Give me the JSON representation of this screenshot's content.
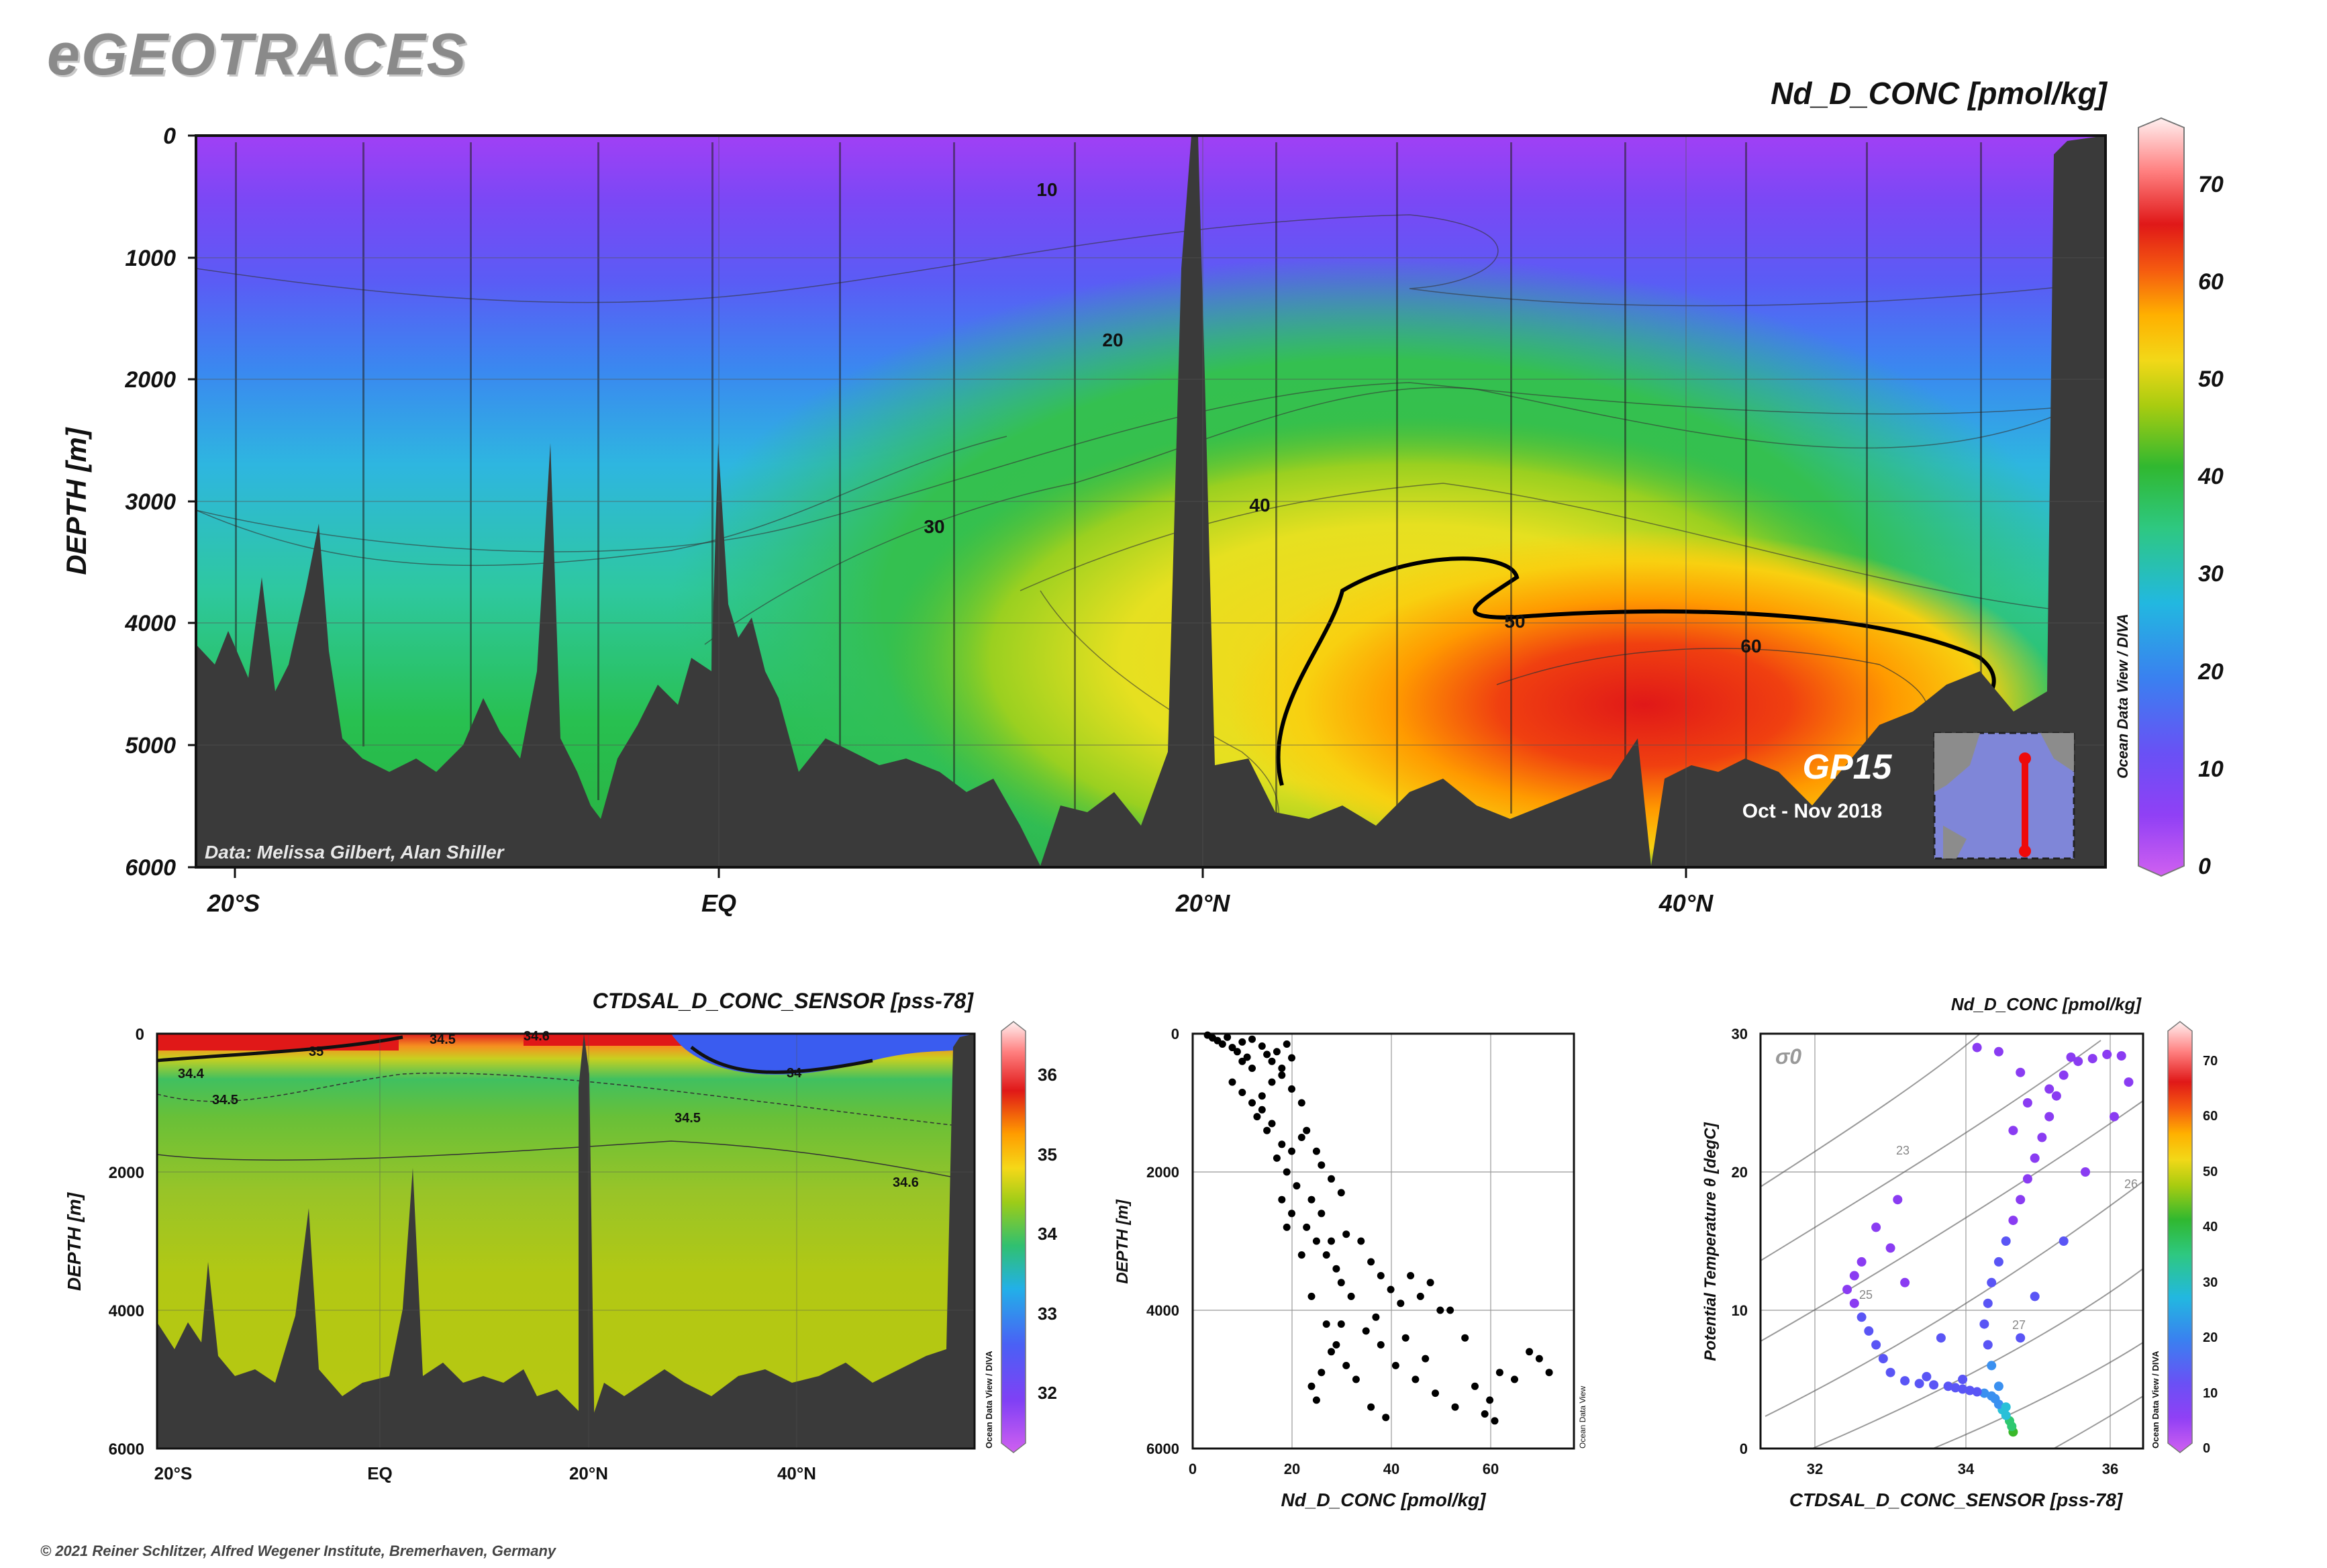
{
  "header": {
    "logo": "eGEOTRACES",
    "copyright": "© 2021 Reiner Schlitzer, Alfred Wegener Institute, Bremerhaven, Germany"
  },
  "colors": {
    "land": "#3a3a3a",
    "scale": [
      "#d060f0",
      "#8a3cf2",
      "#5a55f5",
      "#3a90f0",
      "#28c0d8",
      "#2ec870",
      "#3ab82a",
      "#a8cc10",
      "#f2d818",
      "#ffb000",
      "#f55a10",
      "#e01818",
      "#ff7a7a",
      "#fff0f0"
    ]
  },
  "chart_data": [
    {
      "type": "heatmap",
      "panel": "main-section",
      "title": "Nd_D_CONC [pmol/kg]",
      "ylabel": "DEPTH [m]",
      "yticks": [
        "0",
        "1000",
        "2000",
        "3000",
        "4000",
        "5000",
        "6000"
      ],
      "ylim": [
        0,
        6000
      ],
      "xticks": [
        "20°S",
        "EQ",
        "20°N",
        "40°N"
      ],
      "colorbar": {
        "ticks": [
          "0",
          "10",
          "20",
          "30",
          "40",
          "50",
          "60",
          "70"
        ],
        "range": [
          0,
          75
        ]
      },
      "contour_labels": [
        "10",
        "20",
        "30",
        "40",
        "50",
        "60"
      ],
      "credit": "Data: Melissa Gilbert, Alan Shiller",
      "cruise": "GP15",
      "period": "Oct - Nov 2018",
      "watermark": "Ocean Data View / DIVA"
    },
    {
      "type": "heatmap",
      "panel": "salinity-section",
      "title": "CTDSAL_D_CONC_SENSOR [pss-78]",
      "ylabel": "DEPTH [m]",
      "yticks": [
        "0",
        "2000",
        "4000",
        "6000"
      ],
      "ylim": [
        0,
        6000
      ],
      "xticks": [
        "20°S",
        "EQ",
        "20°N",
        "40°N"
      ],
      "colorbar": {
        "ticks": [
          "32",
          "33",
          "34",
          "35",
          "36"
        ],
        "range": [
          31.3,
          36.5
        ]
      },
      "contour_labels": [
        "35",
        "34.5",
        "34.4",
        "34.5",
        "34.6",
        "34",
        "34.5",
        "34.6"
      ],
      "watermark": "Ocean Data View / DIVA"
    },
    {
      "type": "scatter",
      "panel": "profile",
      "xlabel": "Nd_D_CONC [pmol/kg]",
      "ylabel": "DEPTH [m]",
      "xticks": [
        "0",
        "20",
        "40",
        "60"
      ],
      "yticks": [
        "0",
        "2000",
        "4000",
        "6000"
      ],
      "xlim": [
        0,
        77
      ],
      "ylim": [
        0,
        6000
      ],
      "watermark": "Ocean Data View",
      "points": [
        [
          3,
          20
        ],
        [
          4,
          60
        ],
        [
          5,
          100
        ],
        [
          6,
          150
        ],
        [
          7,
          50
        ],
        [
          8,
          200
        ],
        [
          9,
          260
        ],
        [
          10,
          120
        ],
        [
          11,
          340
        ],
        [
          12,
          80
        ],
        [
          14,
          180
        ],
        [
          15,
          300
        ],
        [
          16,
          400
        ],
        [
          17,
          260
        ],
        [
          18,
          500
        ],
        [
          19,
          150
        ],
        [
          20,
          350
        ],
        [
          8,
          700
        ],
        [
          10,
          850
        ],
        [
          12,
          1000
        ],
        [
          13,
          1200
        ],
        [
          14,
          1100
        ],
        [
          15,
          1400
        ],
        [
          16,
          1300
        ],
        [
          18,
          1600
        ],
        [
          17,
          1800
        ],
        [
          19,
          2000
        ],
        [
          20,
          1700
        ],
        [
          22,
          1500
        ],
        [
          21,
          2200
        ],
        [
          24,
          2400
        ],
        [
          20,
          2600
        ],
        [
          23,
          2800
        ],
        [
          26,
          2600
        ],
        [
          25,
          3000
        ],
        [
          27,
          3200
        ],
        [
          29,
          3400
        ],
        [
          28,
          3000
        ],
        [
          30,
          3600
        ],
        [
          32,
          3800
        ],
        [
          31,
          2900
        ],
        [
          34,
          3000
        ],
        [
          36,
          3300
        ],
        [
          38,
          3500
        ],
        [
          40,
          3700
        ],
        [
          42,
          3900
        ],
        [
          44,
          3500
        ],
        [
          46,
          3800
        ],
        [
          48,
          3600
        ],
        [
          50,
          4000
        ],
        [
          52,
          4000
        ],
        [
          38,
          4500
        ],
        [
          41,
          4800
        ],
        [
          45,
          5000
        ],
        [
          49,
          5200
        ],
        [
          53,
          5400
        ],
        [
          57,
          5100
        ],
        [
          60,
          5300
        ],
        [
          62,
          4900
        ],
        [
          65,
          5000
        ],
        [
          68,
          4600
        ],
        [
          70,
          4700
        ],
        [
          72,
          4900
        ],
        [
          59,
          5500
        ],
        [
          61,
          5600
        ],
        [
          30,
          4200
        ],
        [
          28,
          4600
        ],
        [
          26,
          4900
        ],
        [
          24,
          5100
        ],
        [
          25,
          5300
        ],
        [
          33,
          5000
        ],
        [
          36,
          5400
        ],
        [
          39,
          5550
        ],
        [
          22,
          3200
        ],
        [
          19,
          2800
        ],
        [
          18,
          2400
        ],
        [
          24,
          3800
        ],
        [
          27,
          4200
        ],
        [
          29,
          4500
        ],
        [
          31,
          4800
        ],
        [
          35,
          4300
        ],
        [
          37,
          4100
        ],
        [
          43,
          4400
        ],
        [
          47,
          4700
        ],
        [
          55,
          4400
        ],
        [
          26,
          1900
        ],
        [
          28,
          2100
        ],
        [
          30,
          2300
        ],
        [
          25,
          1700
        ],
        [
          23,
          1400
        ],
        [
          22,
          1000
        ],
        [
          20,
          800
        ],
        [
          18,
          600
        ],
        [
          16,
          700
        ],
        [
          14,
          900
        ],
        [
          12,
          500
        ],
        [
          10,
          400
        ]
      ]
    },
    {
      "type": "scatter",
      "panel": "ts-diagram",
      "title": "Nd_D_CONC [pmol/kg]",
      "xlabel": "CTDSAL_D_CONC_SENSOR [pss-78]",
      "ylabel": "Potential Temperature θ [degC]",
      "xticks": [
        "32",
        "34",
        "36"
      ],
      "yticks": [
        "0",
        "10",
        "20",
        "30"
      ],
      "xlim": [
        31.2,
        36.5
      ],
      "ylim": [
        0,
        30
      ],
      "isopycnal_labels": [
        "23",
        "25",
        "26",
        "27"
      ],
      "sigma_label": "σ0",
      "colorbar": {
        "ticks": [
          "0",
          "10",
          "20",
          "30",
          "40",
          "50",
          "60",
          "70"
        ],
        "range": [
          0,
          75
        ]
      },
      "watermark": "Ocean Data View / DIVA",
      "points": [
        [
          34.7,
          1.2,
          32
        ],
        [
          34.68,
          1.6,
          30
        ],
        [
          34.65,
          2.0,
          27
        ],
        [
          34.6,
          2.4,
          24
        ],
        [
          34.55,
          2.8,
          22
        ],
        [
          34.5,
          3.2,
          20
        ],
        [
          34.45,
          3.6,
          18
        ],
        [
          34.4,
          3.8,
          17
        ],
        [
          34.3,
          4.0,
          15
        ],
        [
          34.2,
          4.1,
          14
        ],
        [
          34.1,
          4.2,
          13
        ],
        [
          34.0,
          4.3,
          12
        ],
        [
          33.9,
          4.4,
          12
        ],
        [
          33.8,
          4.5,
          11
        ],
        [
          33.6,
          4.6,
          10
        ],
        [
          33.4,
          4.7,
          10
        ],
        [
          33.2,
          4.9,
          10
        ],
        [
          33.0,
          5.5,
          10
        ],
        [
          32.9,
          6.5,
          9
        ],
        [
          32.8,
          7.5,
          9
        ],
        [
          32.7,
          8.5,
          9
        ],
        [
          32.6,
          9.5,
          9
        ],
        [
          32.5,
          10.5,
          8
        ],
        [
          32.4,
          11.5,
          8
        ],
        [
          32.5,
          12.5,
          8
        ],
        [
          32.6,
          13.5,
          8
        ],
        [
          34.6,
          3.0,
          22
        ],
        [
          34.5,
          4.5,
          18
        ],
        [
          34.4,
          6.0,
          15
        ],
        [
          34.35,
          7.5,
          13
        ],
        [
          34.3,
          9.0,
          12
        ],
        [
          34.35,
          10.5,
          11
        ],
        [
          34.4,
          12.0,
          10
        ],
        [
          34.5,
          13.5,
          9
        ],
        [
          34.6,
          15.0,
          9
        ],
        [
          34.7,
          16.5,
          8
        ],
        [
          34.8,
          18.0,
          8
        ],
        [
          34.9,
          19.5,
          8
        ],
        [
          35.0,
          21.0,
          7
        ],
        [
          35.1,
          22.5,
          7
        ],
        [
          35.2,
          24.0,
          7
        ],
        [
          35.3,
          25.5,
          6
        ],
        [
          35.4,
          27.0,
          6
        ],
        [
          35.6,
          28.0,
          6
        ],
        [
          35.8,
          28.2,
          6
        ],
        [
          36.0,
          28.5,
          6
        ],
        [
          36.2,
          28.4,
          6
        ],
        [
          35.5,
          28.3,
          6
        ],
        [
          34.9,
          25.0,
          7
        ],
        [
          34.7,
          23.0,
          7
        ],
        [
          34.0,
          5.0,
          12
        ],
        [
          33.5,
          5.2,
          10
        ],
        [
          34.2,
          29.0,
          6
        ],
        [
          34.5,
          28.7,
          6
        ],
        [
          34.8,
          27.2,
          6
        ],
        [
          35.2,
          26.0,
          7
        ],
        [
          36.3,
          26.5,
          6
        ],
        [
          36.1,
          24.0,
          7
        ],
        [
          35.7,
          20.0,
          8
        ],
        [
          35.4,
          15.0,
          9
        ],
        [
          35.0,
          11.0,
          10
        ],
        [
          34.8,
          8.0,
          12
        ],
        [
          33.7,
          8.0,
          9
        ],
        [
          33.2,
          12.0,
          8
        ],
        [
          33.0,
          14.5,
          8
        ],
        [
          32.8,
          16.0,
          8
        ],
        [
          33.1,
          18.0,
          7
        ]
      ]
    }
  ]
}
